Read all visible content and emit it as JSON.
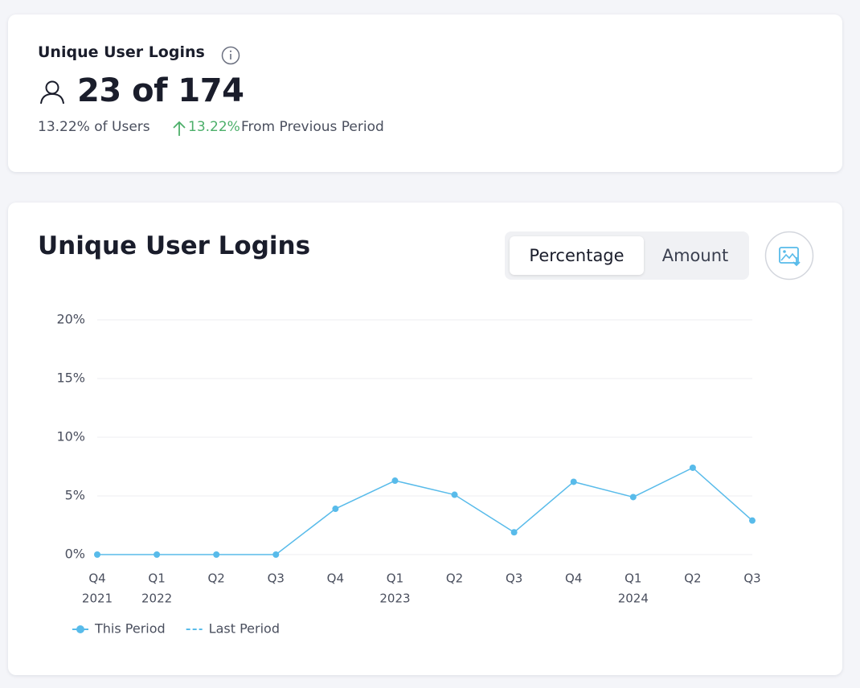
{
  "summary": {
    "title": "Unique User Logins",
    "value": "23 of 174",
    "share": "13.22% of Users",
    "change": "13.22%",
    "change_label": "From Previous Period"
  },
  "controls": {
    "options": [
      "Percentage",
      "Amount"
    ]
  },
  "chart_data": {
    "type": "line",
    "title": "Unique User Logins",
    "categories": [
      "Q4",
      "Q1",
      "Q2",
      "Q3",
      "Q4",
      "Q1",
      "Q2",
      "Q3",
      "Q4",
      "Q1",
      "Q2",
      "Q3"
    ],
    "years": [
      "2021",
      "2022",
      null,
      null,
      null,
      "2023",
      null,
      null,
      null,
      "2024",
      null,
      null
    ],
    "series": [
      {
        "name": "This Period",
        "color": "#58bbea",
        "style": "solid",
        "values": [
          0,
          0,
          0,
          0,
          3.9,
          6.3,
          5.1,
          1.9,
          6.2,
          4.9,
          7.4,
          2.9
        ]
      },
      {
        "name": "Last Period",
        "color": "#58bbea",
        "style": "dashed",
        "values": [
          null,
          null,
          null,
          null,
          null,
          null,
          null,
          null,
          null,
          null,
          null,
          null
        ]
      }
    ],
    "ylim": [
      0,
      20
    ],
    "yticks": [
      {
        "value": 0,
        "label": "0%"
      },
      {
        "value": 5,
        "label": "5%"
      },
      {
        "value": 10,
        "label": "10%"
      },
      {
        "value": 15,
        "label": "15%"
      },
      {
        "value": 20,
        "label": "20%"
      }
    ],
    "grid": true,
    "legend": "bottom-left"
  }
}
